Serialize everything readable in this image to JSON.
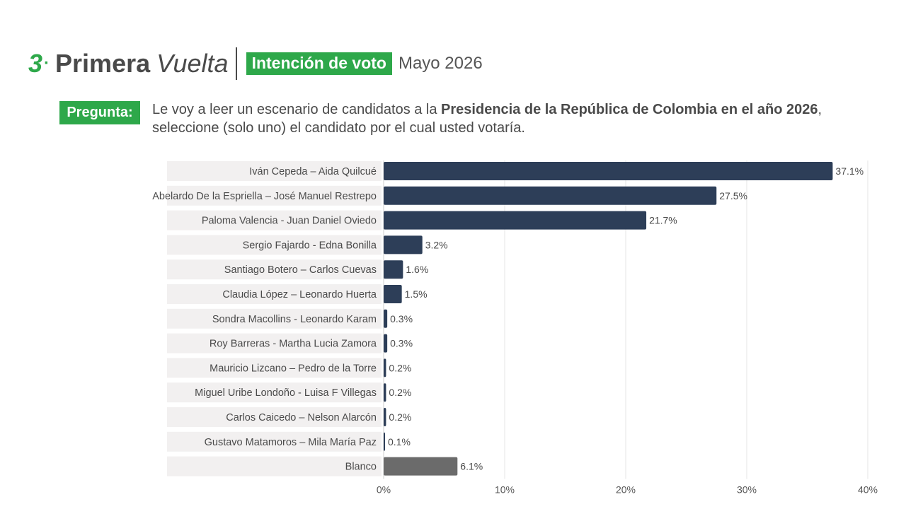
{
  "header": {
    "section_number": "3",
    "section_dot": "·",
    "title_bold": "Primera",
    "title_italic": "Vuelta",
    "tag": "Intención de voto",
    "period": "Mayo 2026"
  },
  "question": {
    "label": "Pregunta:",
    "text_before": "Le voy a leer un escenario de candidatos a la ",
    "text_bold": "Presidencia de la República de Colombia en el año 2026",
    "text_after": ", seleccione (solo uno) el candidato por el cual usted votaría."
  },
  "colors": {
    "accent": "#2ea84a",
    "bar": "#2d3e58",
    "bar_blank": "#6b6b6b",
    "label_bg": "#f2f0f0",
    "grid": "#e6e6e6"
  },
  "chart_data": {
    "type": "bar",
    "orientation": "horizontal",
    "categories": [
      "Iván Cepeda – Aida Quilcué",
      "Abelardo De la Espriella – José Manuel Restrepo",
      "Paloma Valencia - Juan Daniel Oviedo",
      "Sergio Fajardo - Edna Bonilla",
      "Santiago Botero – Carlos Cuevas",
      "Claudia López – Leonardo Huerta",
      "Sondra Macollins - Leonardo Karam",
      "Roy Barreras - Martha Lucia Zamora",
      "Mauricio Lizcano – Pedro de la Torre",
      "Miguel Uribe Londoño - Luisa F Villegas",
      "Carlos Caicedo – Nelson Alarcón",
      "Gustavo Matamoros – Mila María Paz",
      "Blanco"
    ],
    "values": [
      37.1,
      27.5,
      21.7,
      3.2,
      1.6,
      1.5,
      0.3,
      0.3,
      0.2,
      0.2,
      0.2,
      0.1,
      6.1
    ],
    "value_labels": [
      "37.1%",
      "27.5%",
      "21.7%",
      "3.2%",
      "1.6%",
      "1.5%",
      "0.3%",
      "0.3%",
      "0.2%",
      "0.2%",
      "0.2%",
      "0.1%",
      "6.1%"
    ],
    "highlight_category": "Blanco",
    "xlim": [
      0,
      40
    ],
    "xticks": [
      0,
      10,
      20,
      30,
      40
    ],
    "xtick_labels": [
      "0%",
      "10%",
      "20%",
      "30%",
      "40%"
    ],
    "grid": true,
    "xlabel": "",
    "ylabel": ""
  }
}
